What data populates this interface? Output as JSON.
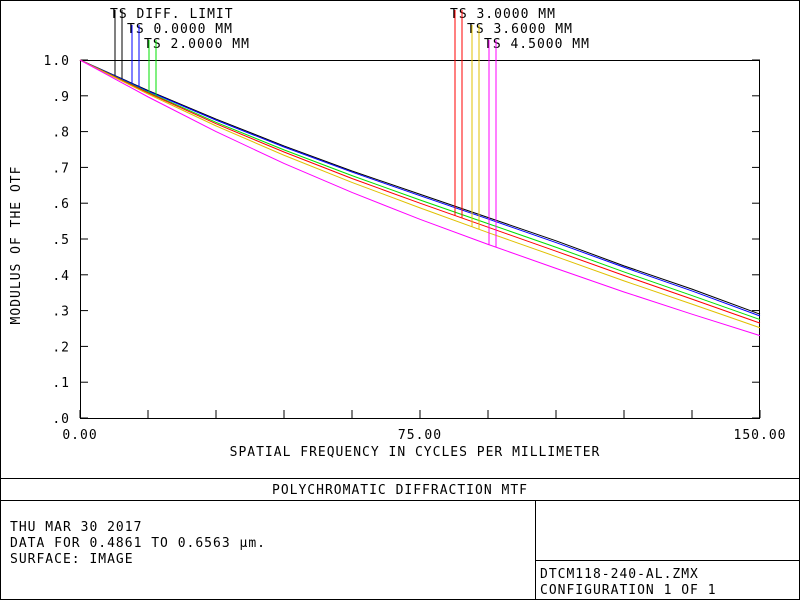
{
  "chart_data": {
    "type": "line",
    "title": "POLYCHROMATIC DIFFRACTION MTF",
    "x_label": "SPATIAL FREQUENCY IN CYCLES PER MILLIMETER",
    "y_label": "MODULUS OF THE OTF",
    "x": [
      0,
      15,
      30,
      45,
      60,
      75,
      90,
      105,
      120,
      135,
      150
    ],
    "xlim": [
      0,
      150
    ],
    "ylim": [
      0,
      1
    ],
    "xticks": [
      {
        "value": 0,
        "label": "0.00"
      },
      {
        "value": 75,
        "label": "75.00"
      },
      {
        "value": 150,
        "label": "150.00"
      }
    ],
    "xminorticks": [
      15,
      30,
      45,
      60,
      90,
      105,
      120,
      135
    ],
    "yticks": [
      {
        "value": 0,
        "label": ".0"
      },
      {
        "value": 0.1,
        "label": ".1"
      },
      {
        "value": 0.2,
        "label": ".2"
      },
      {
        "value": 0.3,
        "label": ".3"
      },
      {
        "value": 0.4,
        "label": ".4"
      },
      {
        "value": 0.5,
        "label": ".5"
      },
      {
        "value": 0.6,
        "label": ".6"
      },
      {
        "value": 0.7,
        "label": ".7"
      },
      {
        "value": 0.8,
        "label": ".8"
      },
      {
        "value": 0.9,
        "label": ".9"
      },
      {
        "value": 1,
        "label": "1.0"
      }
    ],
    "series": [
      {
        "name": "TS DIFF. LIMIT",
        "color": "#000000",
        "values": [
          1,
          0.915,
          0.835,
          0.76,
          0.69,
          0.625,
          0.56,
          0.495,
          0.425,
          0.36,
          0.29
        ]
      },
      {
        "name": "TS 0.0000 MM",
        "color": "#0000ff",
        "values": [
          1,
          0.913,
          0.832,
          0.757,
          0.687,
          0.621,
          0.556,
          0.49,
          0.421,
          0.355,
          0.285
        ]
      },
      {
        "name": "TS 2.0000 MM",
        "color": "#00e000",
        "values": [
          1,
          0.91,
          0.826,
          0.749,
          0.677,
          0.609,
          0.543,
          0.477,
          0.408,
          0.342,
          0.275
        ]
      },
      {
        "name": "TS 3.0000 MM",
        "color": "#ff0000",
        "values": [
          1,
          0.908,
          0.822,
          0.743,
          0.669,
          0.6,
          0.533,
          0.466,
          0.398,
          0.332,
          0.265
        ]
      },
      {
        "name": "TS 3.6000 MM",
        "color": "#e0c000",
        "values": [
          1,
          0.905,
          0.816,
          0.734,
          0.658,
          0.587,
          0.518,
          0.451,
          0.383,
          0.318,
          0.252
        ]
      },
      {
        "name": "TS 4.5000 MM",
        "color": "#ff00ff",
        "values": [
          1,
          0.897,
          0.8,
          0.711,
          0.63,
          0.555,
          0.485,
          0.418,
          0.352,
          0.29,
          0.23
        ]
      }
    ]
  },
  "footer": {
    "date": "THU MAR 30 2017",
    "data_range": "DATA FOR 0.4861 TO 0.6563 µm.",
    "surface": "SURFACE: IMAGE",
    "file": "DTCM118-240-AL.ZMX",
    "configuration": "CONFIGURATION 1 OF 1"
  }
}
